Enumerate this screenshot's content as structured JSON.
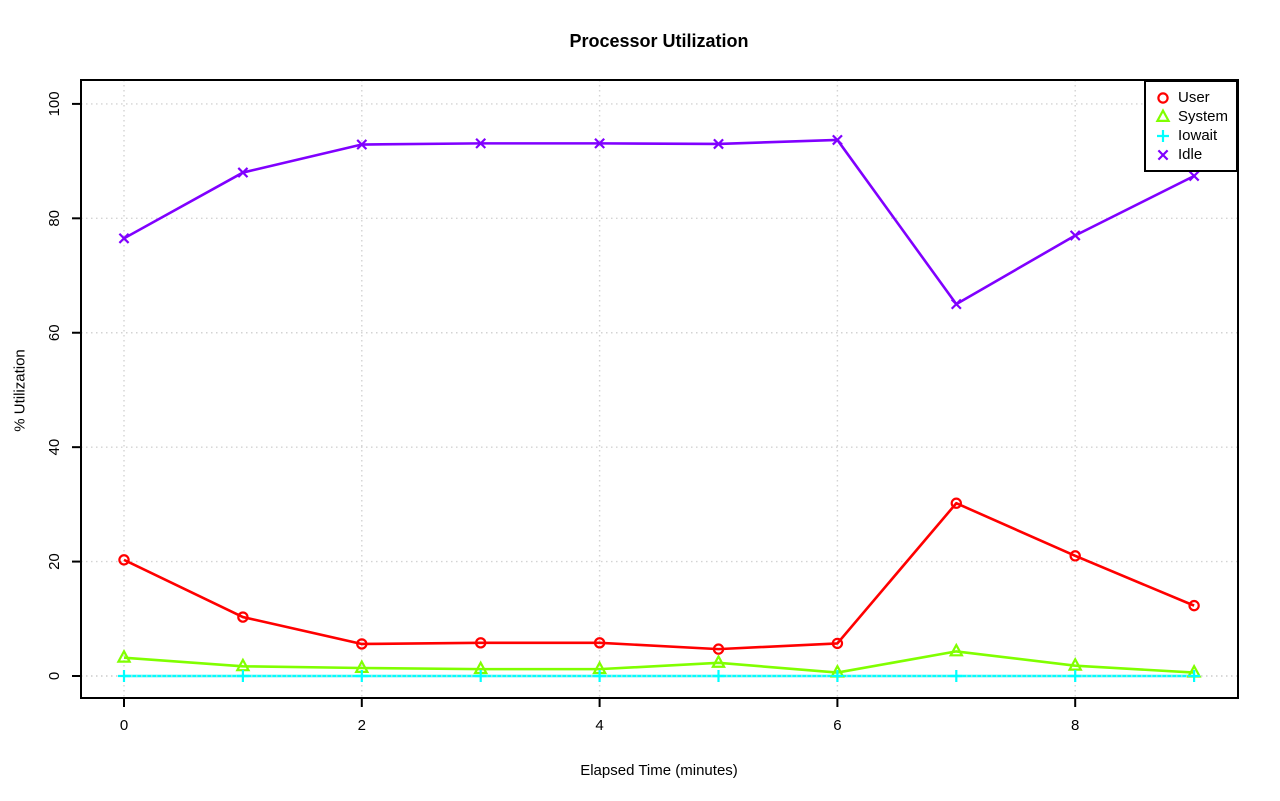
{
  "window": {
    "background": "#ffffff"
  },
  "chart_data": {
    "type": "line",
    "title": "Processor Utilization",
    "xlabel": "Elapsed Time (minutes)",
    "ylabel": "% Utilization",
    "x": [
      0,
      1,
      2,
      3,
      4,
      5,
      6,
      7,
      8,
      9
    ],
    "series": [
      {
        "name": "User",
        "marker": "circle",
        "color": "#FF0000",
        "values": [
          20.3,
          10.3,
          5.6,
          5.8,
          5.8,
          4.7,
          5.7,
          30.2,
          21.0,
          12.3
        ]
      },
      {
        "name": "System",
        "marker": "triangle",
        "color": "#80FF00",
        "values": [
          3.2,
          1.7,
          1.4,
          1.2,
          1.2,
          2.3,
          0.6,
          4.3,
          1.8,
          0.6
        ]
      },
      {
        "name": "Iowait",
        "marker": "plus",
        "color": "#00FFFF",
        "values": [
          0,
          0,
          0,
          0,
          0,
          0,
          0,
          0,
          0,
          0
        ]
      },
      {
        "name": "Idle",
        "marker": "x",
        "color": "#8000FF",
        "values": [
          76.5,
          88.0,
          92.9,
          93.1,
          93.1,
          93.0,
          93.7,
          65.0,
          77.0,
          87.4
        ]
      }
    ],
    "xticks": [
      0,
      2,
      4,
      6,
      8
    ],
    "yticks": [
      0,
      20,
      40,
      60,
      80,
      100
    ],
    "xlim": [
      0,
      9
    ],
    "ylim": [
      0,
      100
    ],
    "grid": {
      "on": true,
      "style": "dotted",
      "color": "#D3D3D3"
    },
    "axis_color": "#000000",
    "legend_position": "topright"
  }
}
